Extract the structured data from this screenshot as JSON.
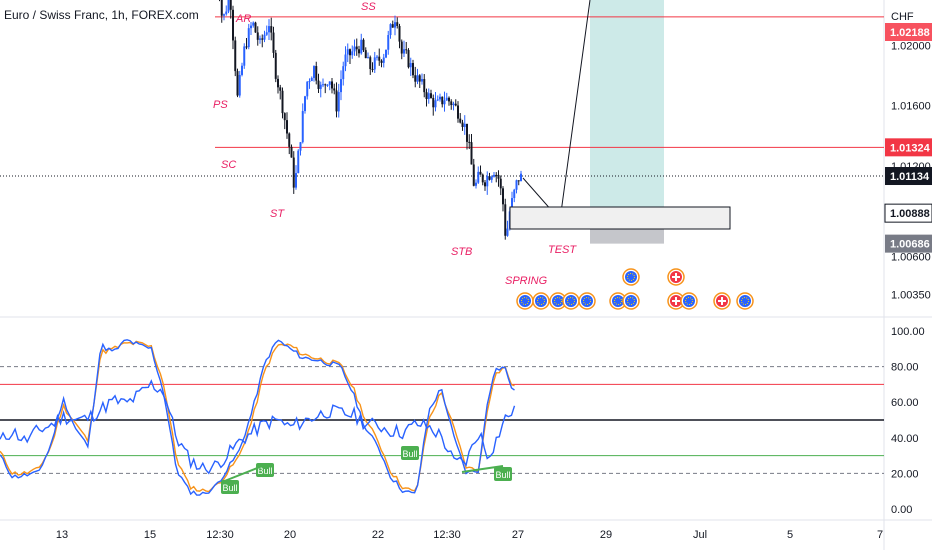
{
  "header": {
    "symbol_title": "Euro / Swiss Franc, 1h, FOREX.com"
  },
  "price_axis": {
    "currency": "CHF",
    "ticks": [
      {
        "label": "1.02000",
        "value": 1.02
      },
      {
        "label": "1.01600",
        "value": 1.016
      },
      {
        "label": "1.01200",
        "value": 1.012
      },
      {
        "label": "1.00600",
        "value": 1.006
      },
      {
        "label": "1.00350",
        "value": 1.0035
      }
    ],
    "tags": [
      {
        "label": "1.02188",
        "value": 1.02188,
        "bg": "#f7525f",
        "fg": "#ffffff",
        "clipped": true
      },
      {
        "label": "1.01324",
        "value": 1.01324,
        "bg": "#f23645",
        "fg": "#ffffff"
      },
      {
        "label": "1.01134",
        "value": 1.01134,
        "bg": "#131722",
        "fg": "#ffffff"
      },
      {
        "label": "1.00888",
        "value": 1.00888,
        "bg": "#ffffff",
        "fg": "#131722",
        "bordered": true
      },
      {
        "label": "1.00686",
        "value": 1.00686,
        "bg": "#787b86",
        "fg": "#ffffff"
      }
    ]
  },
  "osc_axis": {
    "ticks": [
      "100.00",
      "80.00",
      "60.00",
      "40.00",
      "20.00",
      "0.00"
    ],
    "values": [
      100,
      80,
      60,
      40,
      20,
      0
    ]
  },
  "time_axis": {
    "ticks": [
      "13",
      "15",
      "12:30",
      "20",
      "22",
      "12:30",
      "27",
      "29",
      "Jul",
      "5",
      "7"
    ]
  },
  "wyckoff_labels": [
    "PS",
    "AR",
    "SS",
    "SC",
    "ST",
    "STB",
    "SPRING",
    "TEST"
  ],
  "osc_badges": [
    "Bull",
    "Bull",
    "Bull",
    "Bull"
  ],
  "chart_data": {
    "type": "candlestick",
    "symbol": "EURCHF",
    "timeframe": "1h",
    "price_levels": {
      "resistance": 1.02188,
      "support": 1.01324,
      "last_price": 1.01134,
      "trade_entry": 1.00888,
      "stop_loss": 1.00686
    },
    "price_path": [
      [
        0.0,
        1.027
      ],
      [
        0.5,
        1.0215
      ],
      [
        1.0,
        1.0235
      ],
      [
        1.5,
        1.0165
      ],
      [
        2.0,
        1.02
      ],
      [
        2.5,
        1.0215
      ],
      [
        3.0,
        1.02
      ],
      [
        3.6,
        1.0215
      ],
      [
        4.0,
        1.0185
      ],
      [
        4.5,
        1.016
      ],
      [
        5.0,
        1.013
      ],
      [
        5.3,
        1.0105
      ],
      [
        5.7,
        1.014
      ],
      [
        6.1,
        1.0175
      ],
      [
        6.6,
        1.0185
      ],
      [
        7.1,
        1.017
      ],
      [
        7.6,
        1.018
      ],
      [
        8.1,
        1.016
      ],
      [
        8.6,
        1.019
      ],
      [
        9.1,
        1.0195
      ],
      [
        9.7,
        1.02
      ],
      [
        10.3,
        1.0185
      ],
      [
        10.9,
        1.019
      ],
      [
        11.3,
        1.0195
      ],
      [
        11.7,
        1.021
      ],
      [
        12.1,
        1.0222
      ],
      [
        12.4,
        1.0195
      ],
      [
        12.8,
        1.0192
      ],
      [
        13.3,
        1.018
      ],
      [
        13.8,
        1.0173
      ],
      [
        14.3,
        1.0165
      ],
      [
        14.8,
        1.016
      ],
      [
        15.3,
        1.0165
      ],
      [
        15.8,
        1.0162
      ],
      [
        16.3,
        1.0155
      ],
      [
        16.7,
        1.0145
      ],
      [
        17.0,
        1.0128
      ],
      [
        17.3,
        1.0105
      ],
      [
        17.6,
        1.0113
      ],
      [
        18.0,
        1.0111
      ],
      [
        18.3,
        1.0115
      ],
      [
        18.6,
        1.0118
      ],
      [
        18.9,
        1.0112
      ],
      [
        19.2,
        1.0095
      ],
      [
        19.4,
        1.007
      ],
      [
        19.6,
        1.0088
      ],
      [
        19.8,
        1.0096
      ],
      [
        20.2,
        1.0112
      ],
      [
        20.5,
        1.0113
      ]
    ],
    "rsi_path": [
      [
        0.0,
        38
      ],
      [
        0.5,
        44
      ],
      [
        1.0,
        38
      ],
      [
        1.5,
        44
      ],
      [
        2.0,
        47
      ],
      [
        2.5,
        52
      ],
      [
        3.0,
        50
      ],
      [
        3.5,
        51
      ],
      [
        4.0,
        56
      ],
      [
        4.5,
        61
      ],
      [
        5.0,
        59
      ],
      [
        5.5,
        64
      ],
      [
        6.0,
        70
      ],
      [
        6.5,
        66
      ],
      [
        7.0,
        40
      ],
      [
        7.5,
        28
      ],
      [
        8.0,
        23
      ],
      [
        8.5,
        24
      ],
      [
        9.0,
        30
      ],
      [
        9.5,
        38
      ],
      [
        10.0,
        43
      ],
      [
        10.5,
        48
      ],
      [
        11.0,
        50
      ],
      [
        11.5,
        46
      ],
      [
        12.0,
        49
      ],
      [
        12.5,
        52
      ],
      [
        13.0,
        55
      ],
      [
        13.5,
        54
      ],
      [
        14.0,
        53
      ],
      [
        14.5,
        48
      ],
      [
        15.0,
        47
      ],
      [
        15.5,
        44
      ],
      [
        16.0,
        43
      ],
      [
        16.5,
        48
      ],
      [
        17.0,
        46
      ],
      [
        17.5,
        41
      ],
      [
        18.0,
        26
      ],
      [
        18.5,
        27
      ],
      [
        19.0,
        44
      ],
      [
        19.3,
        30
      ],
      [
        19.6,
        36
      ],
      [
        20.0,
        50
      ],
      [
        20.3,
        55
      ],
      [
        20.5,
        54
      ]
    ],
    "stoch_k": [
      [
        0.0,
        30
      ],
      [
        0.5,
        18
      ],
      [
        1.0,
        19
      ],
      [
        1.5,
        20
      ],
      [
        2.0,
        35
      ],
      [
        2.5,
        62
      ],
      [
        3.0,
        45
      ],
      [
        3.5,
        35
      ],
      [
        4.0,
        92
      ],
      [
        4.5,
        88
      ],
      [
        5.0,
        95
      ],
      [
        5.5,
        92
      ],
      [
        6.0,
        90
      ],
      [
        6.5,
        65
      ],
      [
        7.0,
        22
      ],
      [
        7.5,
        10
      ],
      [
        8.0,
        8
      ],
      [
        8.5,
        12
      ],
      [
        9.0,
        22
      ],
      [
        9.5,
        33
      ],
      [
        10.0,
        55
      ],
      [
        10.5,
        82
      ],
      [
        11.0,
        95
      ],
      [
        11.5,
        90
      ],
      [
        12.0,
        85
      ],
      [
        12.5,
        84
      ],
      [
        13.0,
        82
      ],
      [
        13.5,
        80
      ],
      [
        14.0,
        65
      ],
      [
        14.5,
        45
      ],
      [
        15.0,
        35
      ],
      [
        15.5,
        18
      ],
      [
        16.0,
        10
      ],
      [
        16.5,
        8
      ],
      [
        17.0,
        55
      ],
      [
        17.5,
        68
      ],
      [
        18.0,
        40
      ],
      [
        18.5,
        20
      ],
      [
        19.0,
        22
      ],
      [
        19.3,
        58
      ],
      [
        19.6,
        78
      ],
      [
        20.0,
        80
      ],
      [
        20.3,
        68
      ],
      [
        20.5,
        63
      ]
    ],
    "stoch_d": [
      [
        0.0,
        32
      ],
      [
        0.5,
        20
      ],
      [
        1.0,
        20
      ],
      [
        1.5,
        22
      ],
      [
        2.0,
        34
      ],
      [
        2.5,
        58
      ],
      [
        3.0,
        48
      ],
      [
        3.5,
        38
      ],
      [
        4.0,
        88
      ],
      [
        4.5,
        90
      ],
      [
        5.0,
        93
      ],
      [
        5.5,
        93
      ],
      [
        6.0,
        91
      ],
      [
        6.5,
        70
      ],
      [
        7.0,
        28
      ],
      [
        7.5,
        13
      ],
      [
        8.0,
        10
      ],
      [
        8.5,
        12
      ],
      [
        9.0,
        20
      ],
      [
        9.5,
        30
      ],
      [
        10.0,
        50
      ],
      [
        10.5,
        78
      ],
      [
        11.0,
        92
      ],
      [
        11.5,
        92
      ],
      [
        12.0,
        87
      ],
      [
        12.5,
        85
      ],
      [
        13.0,
        83
      ],
      [
        13.5,
        81
      ],
      [
        14.0,
        68
      ],
      [
        14.5,
        50
      ],
      [
        15.0,
        38
      ],
      [
        15.5,
        21
      ],
      [
        16.0,
        12
      ],
      [
        16.5,
        9
      ],
      [
        17.0,
        50
      ],
      [
        17.5,
        66
      ],
      [
        18.0,
        45
      ],
      [
        18.5,
        23
      ],
      [
        19.0,
        22
      ],
      [
        19.3,
        54
      ],
      [
        19.6,
        75
      ],
      [
        20.0,
        80
      ],
      [
        20.3,
        70
      ],
      [
        20.5,
        66
      ]
    ],
    "osc_levels": {
      "upper": 70,
      "middle": 50,
      "lower": 30,
      "dashed": [
        80,
        20
      ]
    },
    "colors": {
      "up": "#2962ff",
      "down": "#131722",
      "resistance": "#f23645",
      "rsi": "#2962ff",
      "stoch_k": "#2962ff",
      "stoch_d": "#f7931a",
      "level_upper": "#f23645",
      "level_lower": "#4caf50",
      "label": "#e91e63",
      "target_zone": "#b2dfdb",
      "stop_zone": "#9598a1"
    }
  }
}
